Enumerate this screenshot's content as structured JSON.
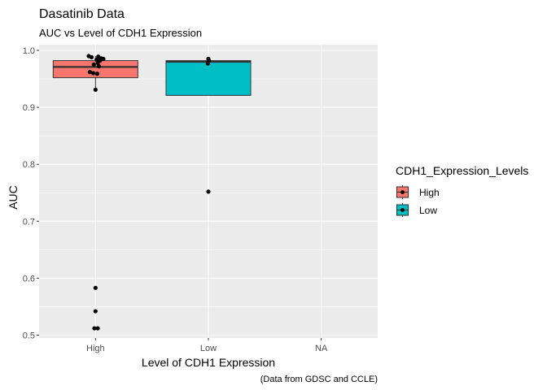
{
  "chart_data": {
    "type": "box",
    "title": "Dasatinib Data",
    "subtitle": "AUC vs Level of CDH1 Expression",
    "xlabel": "Level of CDH1 Expression",
    "ylabel": "AUC",
    "caption": "(Data from GDSC and CCLE)",
    "categories": [
      "High",
      "Low",
      "NA"
    ],
    "ylim": [
      0.495,
      1.01
    ],
    "yticks": [
      0.5,
      0.6,
      0.7,
      0.8,
      0.9,
      1.0
    ],
    "ytick_labels": [
      "0.5",
      "0.6",
      "0.7",
      "0.8",
      "0.9",
      "1.0"
    ],
    "grid": true,
    "legend": {
      "title": "CDH1_Expression_Levels",
      "position": "right",
      "entries": [
        {
          "label": "High",
          "color": "#F8766D"
        },
        {
          "label": "Low",
          "color": "#00BFC4"
        }
      ]
    },
    "boxes": [
      {
        "category": "High",
        "color": "#F8766D",
        "q1": 0.952,
        "median": 0.971,
        "q3": 0.982,
        "whisker_low": 0.931,
        "whisker_high": 0.99
      },
      {
        "category": "Low",
        "color": "#00BFC4",
        "q1": 0.921,
        "median": 0.98,
        "q3": 0.982,
        "whisker_low": 0.921,
        "whisker_high": 0.985
      }
    ],
    "points": [
      {
        "category": "High",
        "y": 0.99,
        "jitter": -0.12
      },
      {
        "category": "High",
        "y": 0.989,
        "jitter": 0.05
      },
      {
        "category": "High",
        "y": 0.988,
        "jitter": -0.07
      },
      {
        "category": "High",
        "y": 0.986,
        "jitter": 0.1
      },
      {
        "category": "High",
        "y": 0.985,
        "jitter": 0.14
      },
      {
        "category": "High",
        "y": 0.984,
        "jitter": 0.02
      },
      {
        "category": "High",
        "y": 0.982,
        "jitter": 0.08
      },
      {
        "category": "High",
        "y": 0.978,
        "jitter": 0.04
      },
      {
        "category": "High",
        "y": 0.975,
        "jitter": -0.03
      },
      {
        "category": "High",
        "y": 0.972,
        "jitter": 0.06
      },
      {
        "category": "High",
        "y": 0.962,
        "jitter": -0.1
      },
      {
        "category": "High",
        "y": 0.96,
        "jitter": -0.04
      },
      {
        "category": "High",
        "y": 0.959,
        "jitter": 0.03
      },
      {
        "category": "High",
        "y": 0.931,
        "jitter": 0.0
      },
      {
        "category": "High",
        "y": 0.583,
        "jitter": 0.0
      },
      {
        "category": "High",
        "y": 0.542,
        "jitter": 0.0
      },
      {
        "category": "High",
        "y": 0.512,
        "jitter": -0.02
      },
      {
        "category": "High",
        "y": 0.512,
        "jitter": 0.04
      },
      {
        "category": "Low",
        "y": 0.985,
        "jitter": 0.0
      },
      {
        "category": "Low",
        "y": 0.982,
        "jitter": 0.01
      },
      {
        "category": "Low",
        "y": 0.977,
        "jitter": -0.01
      },
      {
        "category": "Low",
        "y": 0.752,
        "jitter": 0.0
      }
    ]
  }
}
